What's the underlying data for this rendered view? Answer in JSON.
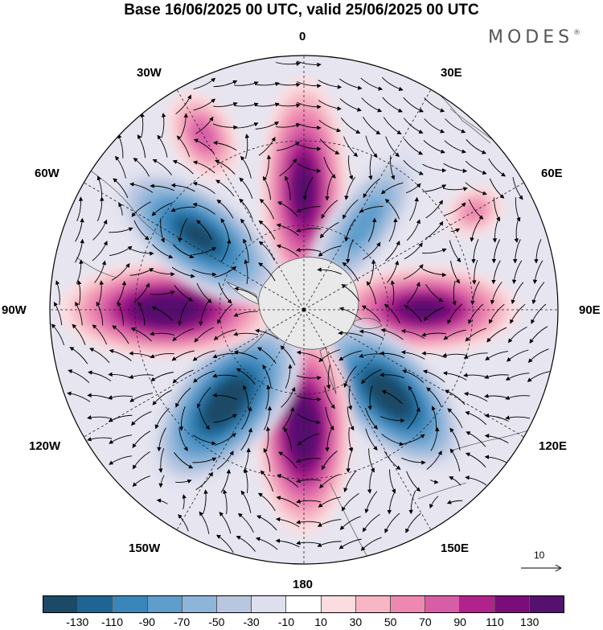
{
  "title": "Base 16/06/2025 00 UTC, valid 25/06/2025 00 UTC",
  "logo": {
    "text": "MODES",
    "mark": "®"
  },
  "longitude_labels": {
    "lon_0": "0",
    "lon_30e": "30E",
    "lon_60e": "60E",
    "lon_90e": "90E",
    "lon_120e": "120E",
    "lon_150e": "150E",
    "lon_180": "180",
    "lon_150w": "150W",
    "lon_120w": "120W",
    "lon_90w": "90W",
    "lon_60w": "60W",
    "lon_30w": "30W"
  },
  "reference_vector": {
    "label": "10"
  },
  "colorbar": {
    "colors": [
      "#1c4966",
      "#1f6593",
      "#3a86bb",
      "#5f9dcb",
      "#8db5da",
      "#b9c6e0",
      "#dedfee",
      "#ffffff",
      "#fbdde0",
      "#f6b6c4",
      "#ee88b0",
      "#d75ea6",
      "#b1238c",
      "#7a0d7a",
      "#54116e"
    ],
    "ticks": [
      "-130",
      "-110",
      "-90",
      "-70",
      "-50",
      "-30",
      "-10",
      "10",
      "30",
      "50",
      "70",
      "90",
      "110",
      "130"
    ]
  },
  "anomaly_cells": [
    {
      "sign": "positive",
      "level": 110,
      "sector": "0"
    },
    {
      "sign": "negative",
      "level": -50,
      "sector": "35E"
    },
    {
      "sign": "positive",
      "level": 30,
      "sector": "60E"
    },
    {
      "sign": "positive",
      "level": 110,
      "sector": "90E"
    },
    {
      "sign": "negative",
      "level": -130,
      "sector": "135E"
    },
    {
      "sign": "positive",
      "level": 130,
      "sector": "180"
    },
    {
      "sign": "negative",
      "level": -130,
      "sector": "140W"
    },
    {
      "sign": "positive",
      "level": 130,
      "sector": "90W"
    },
    {
      "sign": "negative",
      "level": -110,
      "sector": "55W"
    },
    {
      "sign": "positive",
      "level": 50,
      "sector": "30W"
    }
  ]
}
